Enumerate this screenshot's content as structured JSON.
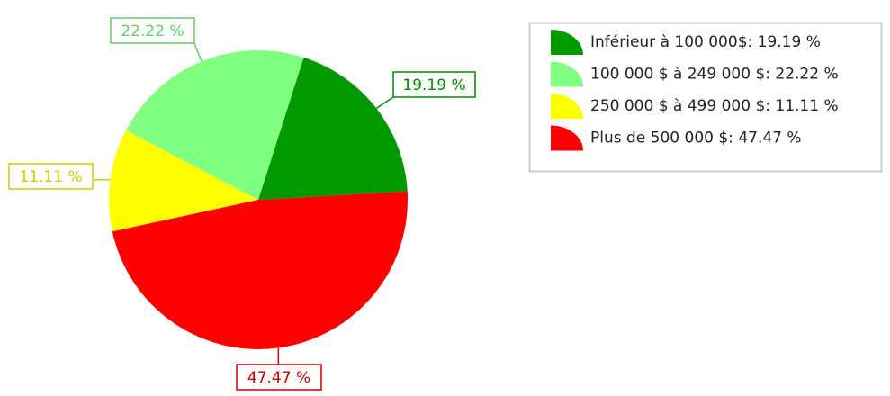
{
  "chart_data": {
    "type": "pie",
    "categories": [
      "Inférieur à 100 000$: 19.19 %",
      "100 000 $ à 249 000 $: 22.22 %",
      "250 000 $ à 499 000 $: 11.11 %",
      "Plus de 500 000 $: 47.47 %"
    ],
    "values": [
      19.19,
      22.22,
      11.11,
      47.47
    ],
    "value_labels": [
      "19.19 %",
      "22.22 %",
      "11.11 %",
      "47.47 %"
    ],
    "colors": [
      "#009900",
      "#80ff80",
      "#ffff00",
      "#ff0000"
    ],
    "label_colors": [
      "#008800",
      "#66cc66",
      "#cccc00",
      "#cc0000"
    ],
    "legend": "top-right"
  }
}
